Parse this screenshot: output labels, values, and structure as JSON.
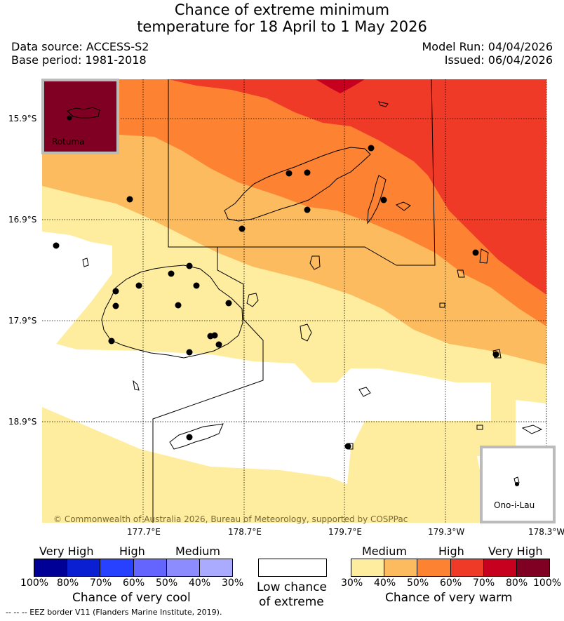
{
  "title_line1": "Chance of extreme minimum",
  "title_line2": "temperature for 18 April to 1 May 2026",
  "data_source": "Data source: ACCESS-S2",
  "base_period": "Base period: 1981-2018",
  "model_run": "Model Run: 04/04/2026",
  "issued": "Issued: 06/04/2026",
  "lat_labels": [
    "15.9°S",
    "16.9°S",
    "17.9°S",
    "18.9°S"
  ],
  "lon_labels": [
    "177.7°E",
    "178.7°E",
    "179.7°E",
    "179.3°W",
    "178.3°W"
  ],
  "copyright": "© Commonwealth of Australia 2026, Bureau of Meteorology, supported by COSPPac",
  "inset_rotuma": "Rotuma",
  "inset_ono": "Ono-i-Lau",
  "legend_cool": {
    "headers": [
      "Very High",
      "High",
      "Medium"
    ],
    "ticks": [
      "100%",
      "80%",
      "70%",
      "60%",
      "50%",
      "40%",
      "30%"
    ],
    "colors": [
      "#000096",
      "#0a1ed2",
      "#2840ff",
      "#6464ff",
      "#8c8cff",
      "#aaaaff"
    ],
    "caption": "Chance of very cool"
  },
  "legend_low": {
    "caption_line1": "Low chance",
    "caption_line2": "of extreme"
  },
  "legend_warm": {
    "headers": [
      "Medium",
      "High",
      "Very High"
    ],
    "ticks": [
      "30%",
      "40%",
      "50%",
      "60%",
      "70%",
      "80%",
      "100%"
    ],
    "colors": [
      "#ffed9f",
      "#fcbb5f",
      "#fd8333",
      "#ef3a28",
      "#c7001f",
      "#7f0022"
    ],
    "caption": "Chance of very warm"
  },
  "footer": "-- -- -- EEZ border V11 (Flanders Marine Institute, 2019).",
  "category_colors": {
    "low": "#ffffff",
    "30_40": "#ffed9f",
    "40_50": "#fcbb5f",
    "50_60": "#fd8333",
    "60_70": "#ef3a28",
    "70_80": "#c7001f",
    "80_100": "#7f0022"
  }
}
